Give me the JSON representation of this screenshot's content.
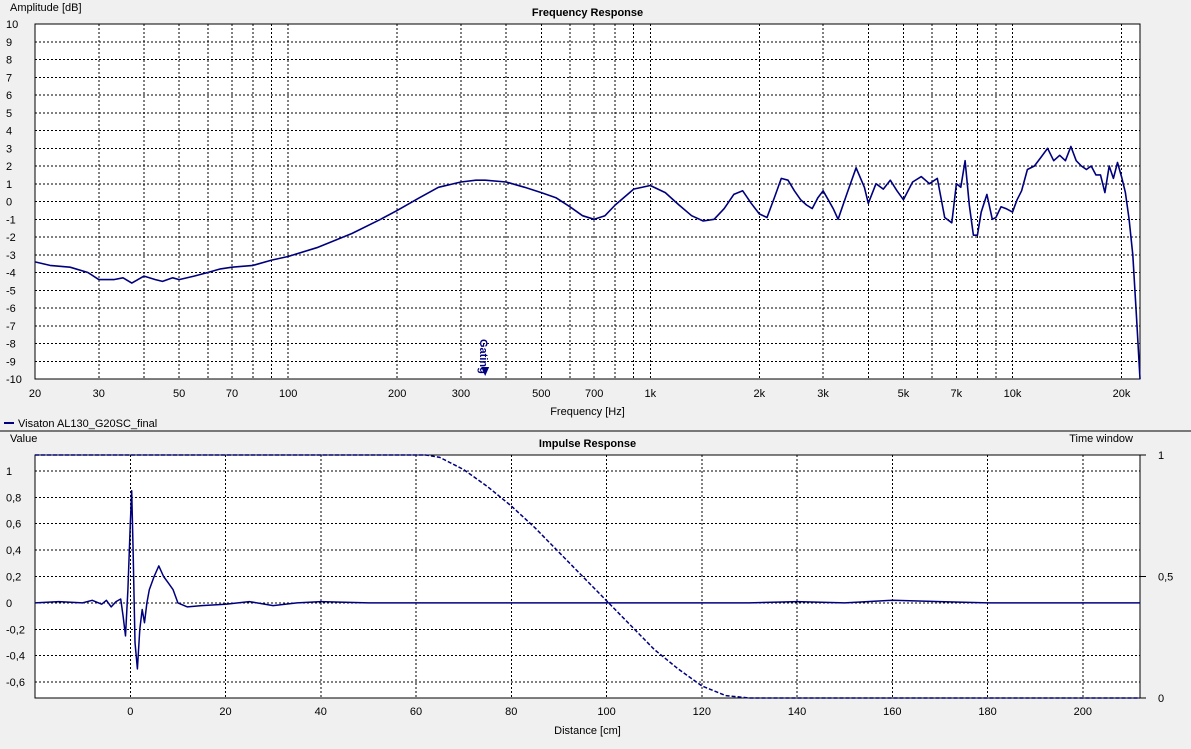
{
  "legend": {
    "label": "Visaton AL130_G20SC_final",
    "color": "#00007f"
  },
  "chart_data": [
    {
      "type": "line",
      "title": "Frequency Response",
      "xlabel": "Frequency [Hz]",
      "ylabel": "Amplitude [dB]",
      "xscale": "log",
      "xlim": [
        20,
        22500
      ],
      "ylim": [
        -10,
        10
      ],
      "grid": true,
      "x_ticks": [
        20,
        30,
        50,
        70,
        100,
        200,
        300,
        500,
        700,
        1000,
        2000,
        3000,
        5000,
        7000,
        10000,
        20000
      ],
      "x_tick_labels": [
        "20",
        "30",
        "50",
        "70",
        "100",
        "200",
        "300",
        "500",
        "700",
        "1k",
        "2k",
        "3k",
        "5k",
        "7k",
        "10k",
        "20k"
      ],
      "y_ticks": [
        10,
        9,
        8,
        7,
        6,
        5,
        4,
        3,
        2,
        1,
        0,
        -1,
        -2,
        -3,
        -4,
        -5,
        -6,
        -7,
        -8,
        -9,
        -10
      ],
      "y_tick_labels": [
        "10",
        "9",
        "8",
        "7",
        "6",
        "5",
        "4",
        "3",
        "2",
        "1",
        "0",
        "-1",
        "-2",
        "-3",
        "-4",
        "-5",
        "-6",
        "-7",
        "-8",
        "-9",
        "-10"
      ],
      "marker": {
        "label": "Gating",
        "x": 350
      },
      "series": [
        {
          "name": "Visaton AL130_G20SC_final",
          "color": "#00007f",
          "x": [
            20,
            22,
            25,
            28,
            30,
            33,
            35,
            37,
            40,
            43,
            45,
            48,
            50,
            55,
            60,
            65,
            70,
            80,
            90,
            100,
            120,
            150,
            180,
            200,
            230,
            260,
            300,
            330,
            350,
            400,
            450,
            500,
            550,
            600,
            650,
            700,
            750,
            800,
            900,
            1000,
            1100,
            1200,
            1300,
            1400,
            1500,
            1600,
            1700,
            1800,
            1900,
            2000,
            2100,
            2200,
            2300,
            2400,
            2500,
            2600,
            2700,
            2800,
            2900,
            3000,
            3100,
            3200,
            3300,
            3500,
            3700,
            3900,
            4000,
            4200,
            4400,
            4600,
            4800,
            5000,
            5300,
            5600,
            5900,
            6200,
            6500,
            6800,
            7000,
            7200,
            7400,
            7600,
            7800,
            8000,
            8200,
            8500,
            8800,
            9000,
            9300,
            9600,
            10000,
            10300,
            10600,
            11000,
            11500,
            12000,
            12500,
            13000,
            13500,
            14000,
            14500,
            15000,
            15500,
            16000,
            16500,
            17000,
            17500,
            18000,
            18500,
            19000,
            19500,
            20000,
            20500,
            21000,
            21500,
            22000,
            22500
          ],
          "y": [
            -3.4,
            -3.6,
            -3.7,
            -4.0,
            -4.4,
            -4.4,
            -4.3,
            -4.6,
            -4.2,
            -4.4,
            -4.5,
            -4.3,
            -4.4,
            -4.2,
            -4.0,
            -3.8,
            -3.7,
            -3.6,
            -3.3,
            -3.1,
            -2.6,
            -1.8,
            -1.0,
            -0.5,
            0.2,
            0.8,
            1.1,
            1.2,
            1.2,
            1.1,
            0.8,
            0.5,
            0.2,
            -0.3,
            -0.8,
            -1.0,
            -0.8,
            -0.2,
            0.7,
            0.9,
            0.5,
            -0.2,
            -0.8,
            -1.1,
            -1.0,
            -0.4,
            0.4,
            0.6,
            -0.1,
            -0.7,
            -0.9,
            0.2,
            1.3,
            1.2,
            0.6,
            0.1,
            -0.2,
            -0.4,
            0.2,
            0.6,
            0.1,
            -0.4,
            -1.0,
            0.5,
            1.9,
            0.8,
            -0.1,
            1.0,
            0.7,
            1.2,
            0.6,
            0.1,
            1.1,
            1.4,
            1.0,
            1.3,
            -0.9,
            -1.2,
            1.0,
            0.8,
            2.3,
            -0.2,
            -1.9,
            -1.9,
            -0.6,
            0.4,
            -1.0,
            -0.9,
            -0.3,
            -0.4,
            -0.6,
            0.1,
            0.6,
            1.8,
            2.0,
            2.5,
            3.0,
            2.3,
            2.6,
            2.3,
            3.1,
            2.3,
            2.0,
            1.8,
            2.0,
            1.5,
            1.5,
            0.5,
            2.0,
            1.3,
            2.2,
            1.4,
            0.5,
            -1.0,
            -3.0,
            -6.5,
            -10.0
          ]
        }
      ]
    },
    {
      "type": "line",
      "title": "Impulse Response",
      "xlabel": "Distance [cm]",
      "ylabel": "Value",
      "y2label": "Time window",
      "xlim": [
        -20,
        212
      ],
      "ylim": [
        -0.72,
        1.12
      ],
      "y2lim": [
        0,
        1
      ],
      "grid": true,
      "x_ticks": [
        0,
        20,
        40,
        60,
        80,
        100,
        120,
        140,
        160,
        180,
        200
      ],
      "x_tick_labels": [
        "0",
        "20",
        "40",
        "60",
        "80",
        "100",
        "120",
        "140",
        "160",
        "180",
        "200"
      ],
      "y_ticks": [
        1,
        0.8,
        0.6,
        0.4,
        0.2,
        0,
        -0.2,
        -0.4,
        -0.6
      ],
      "y_tick_labels": [
        "1",
        "0,8",
        "0,6",
        "0,4",
        "0,2",
        "0",
        "-0,2",
        "-0,4",
        "-0,6"
      ],
      "y2_ticks": [
        1,
        0.5,
        0
      ],
      "y2_tick_labels": [
        "1",
        "0,5",
        "0"
      ],
      "series": [
        {
          "name": "Visaton AL130_G20SC_final",
          "color": "#00007f",
          "x": [
            -20,
            -15,
            -10,
            -8,
            -6,
            -5,
            -4,
            -3,
            -2,
            -1.5,
            -1,
            -0.5,
            0,
            0.3,
            0.6,
            1,
            1.5,
            2,
            2.5,
            3,
            3.5,
            4,
            5,
            6,
            7,
            8,
            9,
            10,
            12,
            15,
            20,
            25,
            30,
            35,
            40,
            50,
            60,
            70,
            80,
            90,
            100,
            110,
            120,
            130,
            140,
            150,
            160,
            170,
            180,
            190,
            200,
            205,
            212
          ],
          "y": [
            0,
            0.01,
            0,
            0.02,
            -0.01,
            0.02,
            -0.03,
            0.01,
            0.03,
            -0.1,
            -0.25,
            0.1,
            0.6,
            0.85,
            0.4,
            -0.3,
            -0.5,
            -0.2,
            -0.05,
            -0.15,
            0.0,
            0.1,
            0.2,
            0.28,
            0.2,
            0.15,
            0.1,
            0.0,
            -0.03,
            -0.02,
            -0.01,
            0.01,
            -0.02,
            0.0,
            0.01,
            0.0,
            0.0,
            0.0,
            0.0,
            0.0,
            0.0,
            0.0,
            0.0,
            0.0,
            0.01,
            0.0,
            0.02,
            0.01,
            0.0,
            0.0,
            0.0,
            0.0,
            0.0
          ]
        },
        {
          "name": "Time window",
          "axis": "y2",
          "style": "dashed",
          "color": "#00007f",
          "x": [
            -20,
            60,
            62,
            65,
            70,
            75,
            80,
            85,
            90,
            95,
            100,
            105,
            110,
            115,
            120,
            125,
            130,
            212
          ],
          "y": [
            1,
            1,
            1,
            0.99,
            0.94,
            0.87,
            0.79,
            0.7,
            0.6,
            0.5,
            0.4,
            0.3,
            0.2,
            0.12,
            0.05,
            0.01,
            0,
            0
          ]
        }
      ]
    }
  ]
}
